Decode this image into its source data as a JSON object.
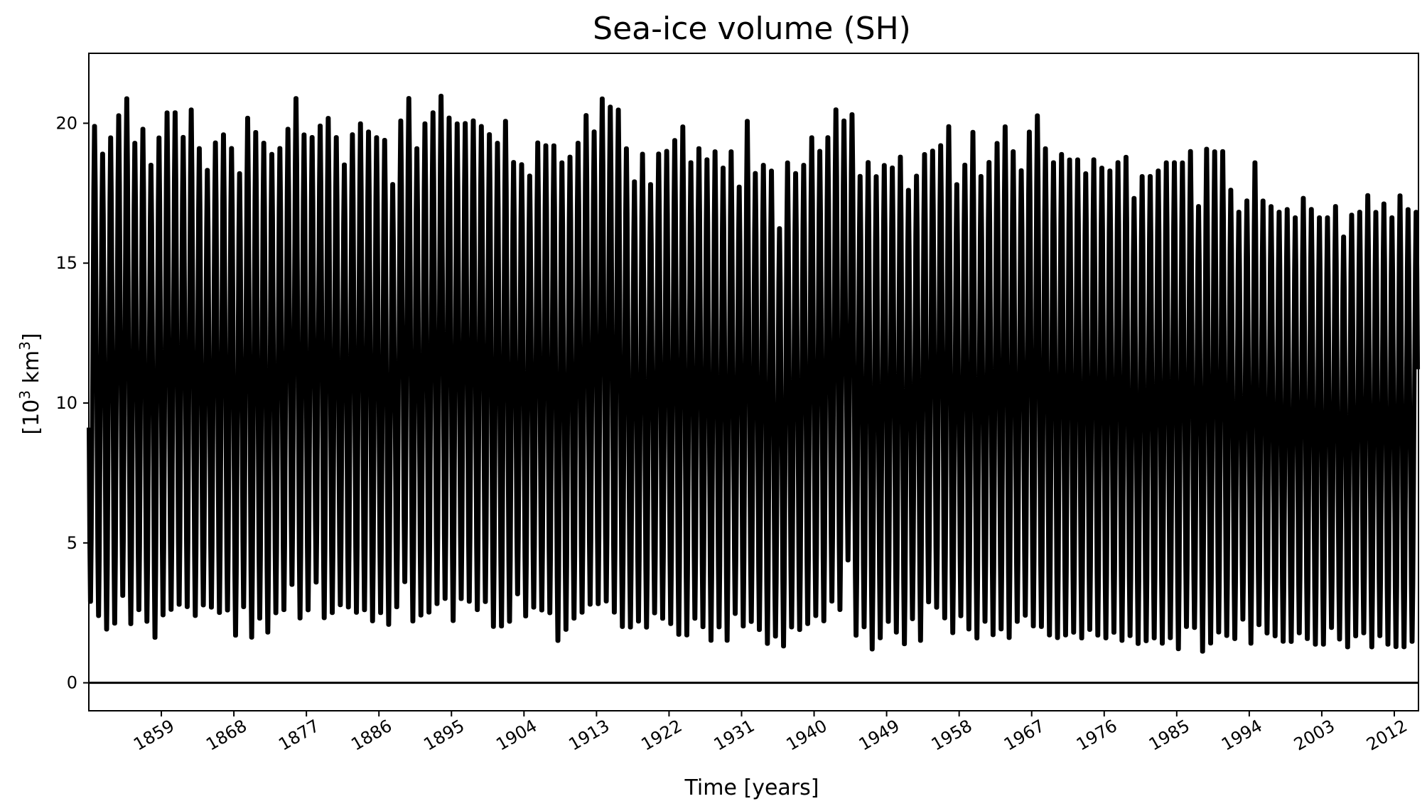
{
  "chart_data": {
    "type": "line",
    "title": "Sea-ice volume (SH)",
    "xlabel": "Time [years]",
    "ylabel_base": "[10",
    "ylabel_exp1": "3",
    "ylabel_mid": " km",
    "ylabel_exp2": "3",
    "ylabel_end": "]",
    "xlim": [
      1850,
      2015
    ],
    "ylim": [
      -1,
      22.5
    ],
    "x_ticks": [
      "1859",
      "1868",
      "1877",
      "1886",
      "1895",
      "1904",
      "1913",
      "1922",
      "1931",
      "1940",
      "1949",
      "1958",
      "1967",
      "1976",
      "1985",
      "1994",
      "2003",
      "2012"
    ],
    "y_ticks": [
      "0",
      "5",
      "10",
      "15",
      "20"
    ],
    "grid": false,
    "reference_line": 0,
    "series": [
      {
        "color": "#000000",
        "x_years": [
          1850,
          1851,
          1852,
          1853,
          1854,
          1855,
          1856,
          1857,
          1858,
          1859,
          1860,
          1861,
          1862,
          1863,
          1864,
          1865,
          1866,
          1867,
          1868,
          1869,
          1870,
          1871,
          1872,
          1873,
          1874,
          1875,
          1876,
          1877,
          1878,
          1879,
          1880,
          1881,
          1882,
          1883,
          1884,
          1885,
          1886,
          1887,
          1888,
          1889,
          1890,
          1891,
          1892,
          1893,
          1894,
          1895,
          1896,
          1897,
          1898,
          1899,
          1900,
          1901,
          1902,
          1903,
          1904,
          1905,
          1906,
          1907,
          1908,
          1909,
          1910,
          1911,
          1912,
          1913,
          1914,
          1915,
          1916,
          1917,
          1918,
          1919,
          1920,
          1921,
          1922,
          1923,
          1924,
          1925,
          1926,
          1927,
          1928,
          1929,
          1930,
          1931,
          1932,
          1933,
          1934,
          1935,
          1936,
          1937,
          1938,
          1939,
          1940,
          1941,
          1942,
          1943,
          1944,
          1945,
          1946,
          1947,
          1948,
          1949,
          1950,
          1951,
          1952,
          1953,
          1954,
          1955,
          1956,
          1957,
          1958,
          1959,
          1960,
          1961,
          1962,
          1963,
          1964,
          1965,
          1966,
          1967,
          1968,
          1969,
          1970,
          1971,
          1972,
          1973,
          1974,
          1975,
          1976,
          1977,
          1978,
          1979,
          1980,
          1981,
          1982,
          1983,
          1984,
          1985,
          1986,
          1987,
          1988,
          1989,
          1990,
          1991,
          1992,
          1993,
          1994,
          1995,
          1996,
          1997,
          1998,
          1999,
          2000,
          2001,
          2002,
          2003,
          2004,
          2005,
          2006,
          2007,
          2008,
          2009,
          2010,
          2011,
          2012,
          2013,
          2014
        ],
        "annual_max": [
          20.2,
          19.2,
          19.8,
          20.6,
          21.2,
          19.6,
          20.1,
          18.8,
          19.8,
          20.7,
          20.7,
          19.8,
          20.8,
          19.4,
          18.6,
          19.6,
          19.9,
          19.4,
          18.5,
          20.5,
          20.0,
          19.6,
          19.2,
          19.4,
          20.1,
          21.2,
          19.9,
          19.8,
          20.2,
          20.5,
          19.8,
          18.8,
          19.9,
          20.3,
          20.0,
          19.8,
          19.7,
          18.1,
          20.4,
          21.2,
          19.4,
          20.3,
          20.7,
          21.3,
          20.5,
          20.3,
          20.3,
          20.4,
          20.2,
          19.9,
          19.6,
          20.4,
          18.9,
          18.8,
          18.4,
          19.6,
          19.5,
          19.5,
          18.9,
          19.1,
          19.6,
          20.6,
          20.0,
          21.2,
          20.9,
          20.8,
          19.4,
          18.2,
          19.2,
          18.1,
          19.2,
          19.3,
          19.7,
          20.2,
          18.9,
          19.4,
          19.0,
          19.3,
          18.7,
          19.3,
          18.0,
          20.4,
          18.5,
          18.8,
          18.6,
          16.5,
          18.9,
          18.5,
          18.8,
          19.8,
          19.3,
          19.8,
          20.8,
          20.4,
          20.6,
          18.4,
          18.9,
          18.4,
          18.8,
          18.7,
          19.1,
          17.9,
          18.4,
          19.2,
          19.3,
          19.5,
          20.2,
          18.1,
          18.8,
          20.0,
          18.4,
          18.9,
          19.6,
          20.2,
          19.3,
          18.6,
          20.0,
          20.6,
          19.4,
          18.9,
          19.2,
          19.0,
          19.0,
          18.5,
          19.0,
          18.7,
          18.6,
          18.9,
          19.1,
          17.6,
          18.4,
          18.4,
          18.6,
          18.9,
          18.9,
          18.9,
          19.3,
          17.3,
          19.4,
          19.3,
          19.3,
          17.9,
          17.1,
          17.5,
          18.9,
          17.5,
          17.3,
          17.1,
          17.2,
          16.9,
          17.6,
          17.2,
          16.9,
          16.9,
          17.3,
          16.2,
          17.0,
          17.1,
          17.7,
          17.1,
          17.4,
          16.9,
          17.7,
          17.2,
          17.1,
          17.8,
          17.1,
          15.3,
          17.7
        ],
        "annual_min": [
          2.6,
          2.1,
          1.6,
          1.8,
          2.8,
          1.8,
          2.3,
          1.9,
          1.3,
          2.1,
          2.3,
          2.5,
          2.4,
          2.1,
          2.5,
          2.4,
          2.2,
          2.3,
          1.4,
          2.4,
          1.3,
          2.0,
          1.5,
          2.2,
          2.3,
          3.2,
          2.0,
          2.3,
          3.3,
          2.0,
          2.2,
          2.5,
          2.4,
          2.2,
          2.3,
          1.9,
          2.2,
          1.8,
          2.4,
          3.3,
          1.9,
          2.1,
          2.2,
          2.5,
          2.7,
          1.9,
          2.7,
          2.6,
          2.3,
          2.6,
          1.7,
          1.7,
          1.9,
          2.9,
          2.1,
          2.4,
          2.3,
          2.2,
          1.2,
          1.6,
          2.0,
          2.2,
          2.5,
          2.5,
          2.6,
          2.2,
          1.7,
          1.7,
          1.9,
          1.7,
          2.2,
          2.0,
          1.8,
          1.4,
          1.4,
          2.0,
          1.7,
          1.2,
          1.7,
          1.2,
          2.2,
          1.7,
          1.9,
          1.6,
          1.1,
          1.4,
          1.0,
          1.7,
          1.6,
          1.8,
          2.1,
          1.9,
          2.6,
          2.3,
          4.1,
          1.4,
          1.7,
          0.9,
          1.3,
          1.9,
          1.5,
          1.1,
          2.0,
          1.2,
          2.6,
          2.4,
          2.0,
          1.5,
          2.1,
          1.6,
          1.3,
          1.9,
          1.4,
          1.6,
          1.3,
          1.9,
          2.1,
          1.7,
          1.7,
          1.4,
          1.3,
          1.4,
          1.5,
          1.3,
          1.6,
          1.4,
          1.3,
          1.5,
          1.2,
          1.4,
          1.1,
          1.2,
          1.3,
          1.1,
          1.3,
          0.9,
          1.7,
          1.7,
          0.8,
          1.1,
          1.5,
          1.4,
          1.3,
          2.0,
          1.1,
          1.8,
          1.5,
          1.4,
          1.2,
          1.2,
          1.5,
          1.3,
          1.1,
          1.1,
          1.7,
          1.3,
          1.0,
          1.4,
          1.5,
          1.0,
          1.4,
          1.1,
          1.0,
          1.0,
          1.2,
          1.1,
          1.0
        ]
      }
    ]
  }
}
